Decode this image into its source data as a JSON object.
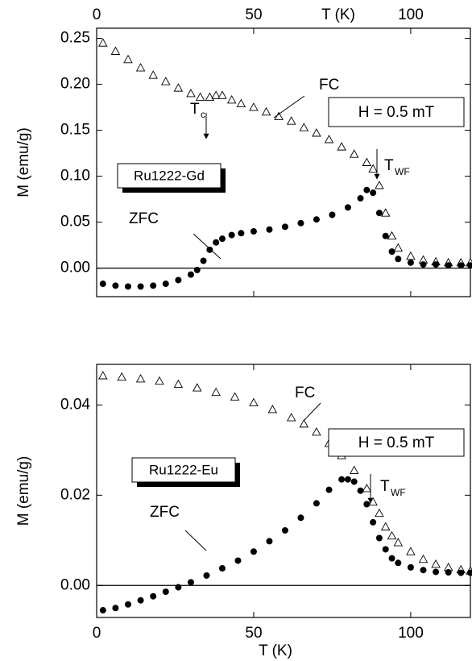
{
  "chart_data": [
    {
      "type": "scatter",
      "sample": "Ru1222-Gd",
      "field": "H = 0.5 mT",
      "xlabel": "T (K)",
      "ylabel": "M (emu/g)",
      "x_axis_position": "top",
      "zero_line": true,
      "transition_label": "T",
      "transition_sub": "c",
      "wf_label": "T",
      "wf_sub": "WF",
      "xlim": [
        0,
        119
      ],
      "xticks": [
        0,
        50,
        100
      ],
      "ylim": [
        -0.031,
        0.261
      ],
      "yticks": [
        {
          "value": 0.0,
          "label": "0.00"
        },
        0.05,
        {
          "value": 0.1,
          "label": "0.10"
        },
        0.15,
        {
          "value": 0.2,
          "label": "0.20"
        },
        0.25
      ],
      "series": [
        {
          "name": "FC",
          "marker": "open-triangle",
          "color": "#000000",
          "x": [
            2,
            6,
            10,
            14,
            18,
            22,
            26,
            30,
            33,
            36,
            38,
            40,
            43,
            46,
            50,
            54,
            58,
            62,
            66,
            70,
            74,
            78,
            82,
            86,
            88,
            90,
            92,
            94,
            96,
            100,
            104,
            108,
            112,
            116,
            119
          ],
          "values": [
            0.245,
            0.236,
            0.227,
            0.218,
            0.21,
            0.203,
            0.196,
            0.19,
            0.186,
            0.186,
            0.188,
            0.188,
            0.183,
            0.179,
            0.175,
            0.17,
            0.165,
            0.16,
            0.153,
            0.147,
            0.14,
            0.132,
            0.124,
            0.115,
            0.108,
            0.09,
            0.06,
            0.035,
            0.022,
            0.013,
            0.009,
            0.007,
            0.006,
            0.006,
            0.006
          ]
        },
        {
          "name": "ZFC",
          "marker": "filled-circle",
          "color": "#000000",
          "x": [
            2,
            6,
            10,
            14,
            18,
            22,
            26,
            30,
            32,
            34,
            36,
            38,
            40,
            43,
            46,
            50,
            55,
            60,
            65,
            70,
            75,
            80,
            84,
            86,
            88,
            90,
            92,
            94,
            96,
            100,
            104,
            108,
            112,
            116,
            119
          ],
          "values": [
            -0.017,
            -0.019,
            -0.02,
            -0.02,
            -0.019,
            -0.017,
            -0.013,
            -0.007,
            -0.002,
            0.008,
            0.02,
            0.028,
            0.032,
            0.036,
            0.038,
            0.04,
            0.042,
            0.045,
            0.049,
            0.053,
            0.058,
            0.066,
            0.076,
            0.085,
            0.082,
            0.06,
            0.035,
            0.018,
            0.01,
            0.006,
            0.004,
            0.004,
            0.003,
            0.003,
            0.003
          ]
        }
      ]
    },
    {
      "type": "scatter",
      "sample": "Ru1222-Eu",
      "field": "H = 0.5 mT",
      "xlabel": "T (K)",
      "ylabel": "M (emu/g)",
      "x_axis_position": "bottom",
      "zero_line": true,
      "wf_label": "T",
      "wf_sub": "WF",
      "xlim": [
        0,
        119
      ],
      "xticks": [
        0,
        50,
        100
      ],
      "ylim": [
        -0.0071,
        0.049
      ],
      "yticks": [
        {
          "value": 0.0,
          "label": "0.00"
        },
        0.02,
        0.04
      ],
      "series": [
        {
          "name": "FC",
          "marker": "open-triangle",
          "color": "#000000",
          "x": [
            2,
            8,
            14,
            20,
            26,
            32,
            38,
            44,
            50,
            56,
            62,
            66,
            70,
            74,
            78,
            82,
            86,
            88,
            90,
            92,
            94,
            96,
            100,
            104,
            108,
            112,
            116,
            119
          ],
          "values": [
            0.0465,
            0.0462,
            0.0458,
            0.0453,
            0.0446,
            0.0438,
            0.0428,
            0.0418,
            0.0405,
            0.039,
            0.0372,
            0.0358,
            0.034,
            0.0315,
            0.0288,
            0.0255,
            0.0215,
            0.0185,
            0.016,
            0.013,
            0.011,
            0.0095,
            0.0075,
            0.0058,
            0.0047,
            0.004,
            0.0035,
            0.0032
          ]
        },
        {
          "name": "ZFC",
          "marker": "filled-circle",
          "color": "#000000",
          "x": [
            2,
            6,
            10,
            14,
            18,
            22,
            26,
            30,
            35,
            40,
            45,
            50,
            55,
            60,
            65,
            70,
            74,
            78,
            80,
            82,
            84,
            86,
            88,
            90,
            92,
            94,
            96,
            100,
            104,
            108,
            112,
            116,
            119
          ],
          "values": [
            -0.0055,
            -0.005,
            -0.0042,
            -0.0033,
            -0.0024,
            -0.0014,
            -0.0004,
            0.0007,
            0.0022,
            0.0038,
            0.0055,
            0.0075,
            0.0098,
            0.0122,
            0.015,
            0.0182,
            0.0212,
            0.0235,
            0.0235,
            0.023,
            0.021,
            0.018,
            0.014,
            0.0105,
            0.008,
            0.006,
            0.005,
            0.004,
            0.0034,
            0.003,
            0.0029,
            0.0028,
            0.0028
          ]
        }
      ]
    }
  ]
}
